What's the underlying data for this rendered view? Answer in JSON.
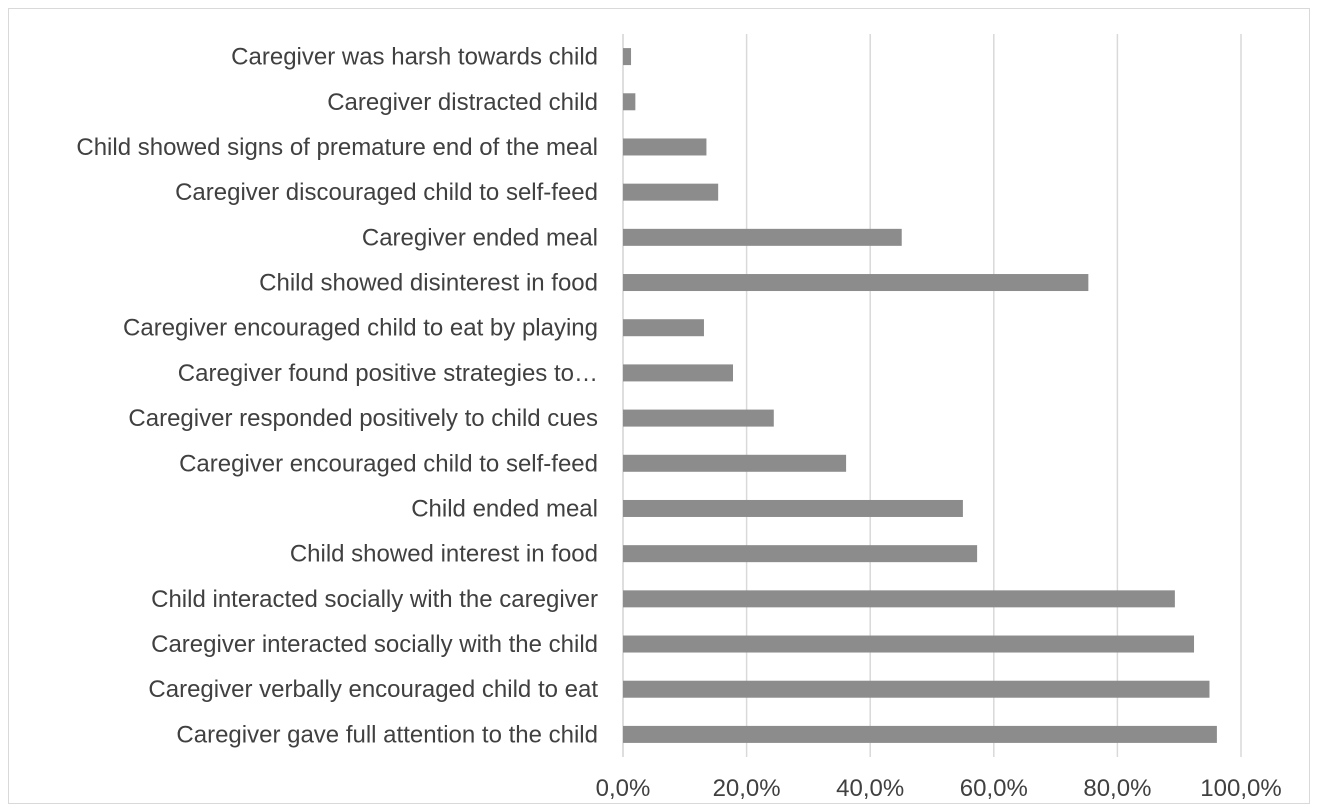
{
  "chart_data": {
    "type": "bar",
    "orientation": "horizontal",
    "title": "",
    "xlabel": "",
    "ylabel": "",
    "xlim": [
      0,
      100
    ],
    "x_ticks": [
      "0,0%",
      "20,0%",
      "40,0%",
      "60,0%",
      "80,0%",
      "100,0%"
    ],
    "grid": "vertical",
    "colors": {
      "bar": "#8c8c8c",
      "grid": "#d9d9d9",
      "text": "#404040"
    },
    "categories": [
      "Caregiver was harsh towards child",
      "Caregiver distracted child",
      "Child showed signs of premature end of the meal",
      "Caregiver discouraged child to self-feed",
      "Caregiver ended meal",
      "Child showed disinterest in food",
      "Caregiver encouraged child to eat by playing",
      "Caregiver found positive strategies to…",
      "Caregiver responded positively to child cues",
      "Caregiver encouraged child to self-feed",
      "Child ended meal",
      "Child showed interest in food",
      "Child interacted socially with the caregiver",
      "Caregiver interacted socially with the child",
      "Caregiver verbally encouraged child to eat",
      "Caregiver gave full attention to the child"
    ],
    "values": [
      1.3,
      2.0,
      13.5,
      15.4,
      45.1,
      75.3,
      13.1,
      17.8,
      24.4,
      36.1,
      55.0,
      57.3,
      89.3,
      92.4,
      94.9,
      96.1
    ]
  }
}
